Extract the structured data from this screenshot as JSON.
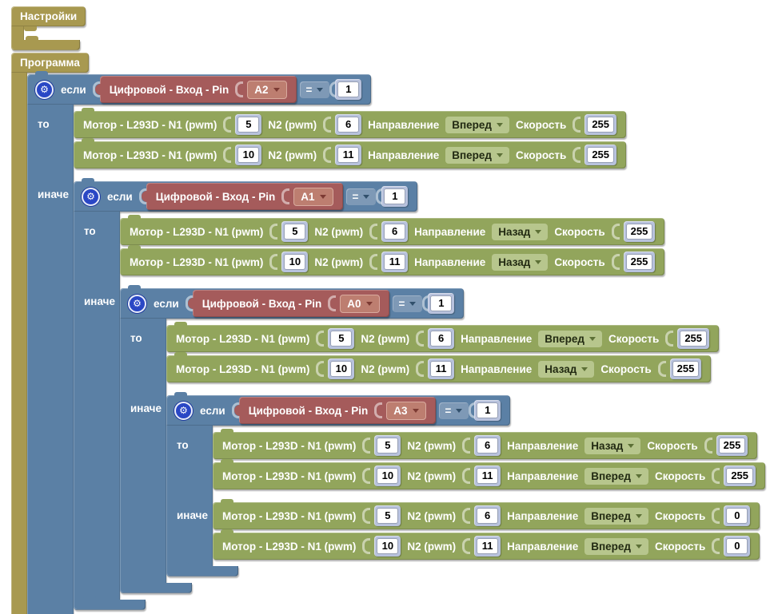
{
  "labels": {
    "settings": "Настройки",
    "program": "Программа",
    "if": "если",
    "then": "то",
    "else": "иначе",
    "digital": "Цифровой - Вход - Pin",
    "eq": "=",
    "motor1": "Мотор - L293D - N1 (pwm)",
    "motor2": "N2 (pwm)",
    "direction": "Направление",
    "speed": "Скорость"
  },
  "colors": {
    "container_block": "#a89950",
    "logic_block": "#5b80a5",
    "sensor_block": "#a55b5b",
    "motor_block": "#92a55c",
    "value_chip": "#b8c2dd",
    "gear_icon": "#2a47c5"
  },
  "rules": [
    {
      "pin": "A2",
      "op": "=",
      "value": "1",
      "motors": [
        {
          "n1": "5",
          "n2": "6",
          "dir": "Вперед",
          "speed": "255"
        },
        {
          "n1": "10",
          "n2": "11",
          "dir": "Вперед",
          "speed": "255"
        }
      ]
    },
    {
      "pin": "A1",
      "op": "=",
      "value": "1",
      "motors": [
        {
          "n1": "5",
          "n2": "6",
          "dir": "Назад",
          "speed": "255"
        },
        {
          "n1": "10",
          "n2": "11",
          "dir": "Назад",
          "speed": "255"
        }
      ]
    },
    {
      "pin": "A0",
      "op": "=",
      "value": "1",
      "motors": [
        {
          "n1": "5",
          "n2": "6",
          "dir": "Вперед",
          "speed": "255"
        },
        {
          "n1": "10",
          "n2": "11",
          "dir": "Назад",
          "speed": "255"
        }
      ]
    },
    {
      "pin": "A3",
      "op": "=",
      "value": "1",
      "motors": [
        {
          "n1": "5",
          "n2": "6",
          "dir": "Назад",
          "speed": "255"
        },
        {
          "n1": "10",
          "n2": "11",
          "dir": "Вперед",
          "speed": "255"
        }
      ]
    }
  ],
  "else_motors": [
    {
      "n1": "5",
      "n2": "6",
      "dir": "Вперед",
      "speed": "0"
    },
    {
      "n1": "10",
      "n2": "11",
      "dir": "Вперед",
      "speed": "0"
    }
  ]
}
